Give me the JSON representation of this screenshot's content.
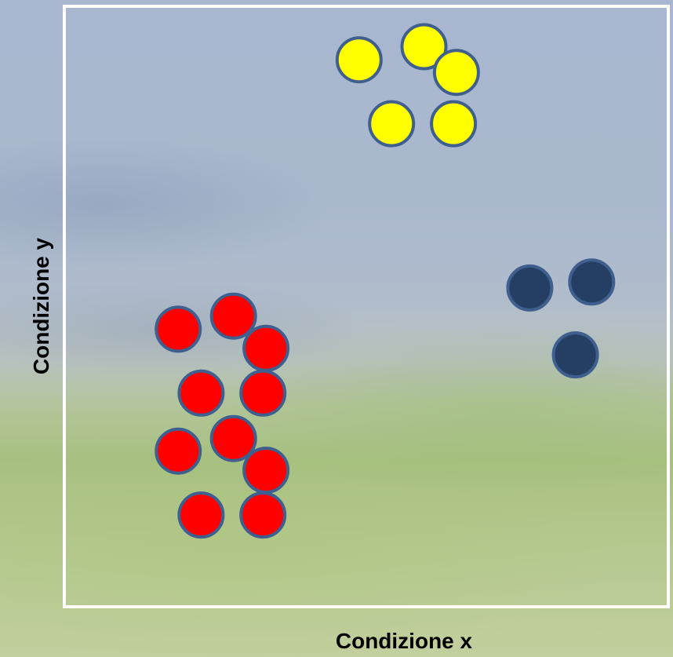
{
  "chart_data": {
    "type": "scatter",
    "title": "",
    "xlabel": "Condizione x",
    "ylabel": "Condizione y",
    "xlim": [
      0,
      100
    ],
    "ylim": [
      0,
      100
    ],
    "grid": false,
    "colors": {
      "frame": "#ffffff",
      "marker_stroke": "#3f5f8f"
    },
    "series": [
      {
        "color": "#ffff00",
        "points": [
          {
            "x": 48.8,
            "y": 91.3
          },
          {
            "x": 59.6,
            "y": 93.5
          },
          {
            "x": 65.0,
            "y": 89.2
          },
          {
            "x": 54.2,
            "y": 80.6
          },
          {
            "x": 64.5,
            "y": 80.6
          }
        ]
      },
      {
        "color": "#ff0000",
        "points": [
          {
            "x": 18.7,
            "y": 46.2
          },
          {
            "x": 27.9,
            "y": 48.4
          },
          {
            "x": 33.3,
            "y": 43.0
          },
          {
            "x": 22.5,
            "y": 35.5
          },
          {
            "x": 32.8,
            "y": 35.5
          },
          {
            "x": 27.9,
            "y": 27.9
          },
          {
            "x": 18.7,
            "y": 25.8
          },
          {
            "x": 33.3,
            "y": 22.6
          },
          {
            "x": 22.5,
            "y": 15.1
          },
          {
            "x": 32.8,
            "y": 15.1
          }
        ]
      },
      {
        "color": "#243f63",
        "points": [
          {
            "x": 77.2,
            "y": 53.1
          },
          {
            "x": 87.5,
            "y": 54.1
          },
          {
            "x": 84.8,
            "y": 41.9
          }
        ]
      }
    ]
  }
}
